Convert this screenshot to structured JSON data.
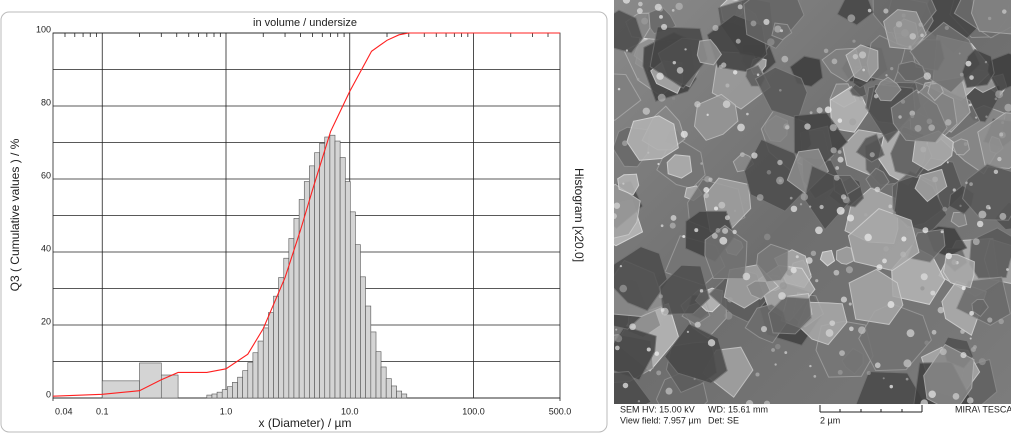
{
  "chart_data": {
    "type": "histogram",
    "title": "in volume / undersize",
    "xlabel": "x (Diameter) / µm",
    "ylabel": "Q3 ( Cumulative values ) / %",
    "y2label": "Histogram [x20.0]",
    "xscale": "log",
    "xlim": [
      0.04,
      500
    ],
    "xticks": [
      0.04,
      0.1,
      {
        "value": 1,
        "label": "1.0"
      },
      {
        "value": 10,
        "label": "10.0"
      },
      {
        "value": 100,
        "label": "100.0"
      },
      {
        "value": 500,
        "label": "500.0"
      }
    ],
    "ylim": [
      0,
      100
    ],
    "yticks": [
      0,
      20,
      40,
      60,
      80,
      100
    ],
    "ygrid": [
      0,
      10,
      20,
      30,
      40,
      50,
      60,
      70,
      80,
      90,
      100
    ],
    "grid": true,
    "color": "#d4d4d4",
    "edgecolor": "#555555",
    "bins": [
      0.1,
      0.2,
      0.3,
      0.41,
      0.7,
      0.77,
      0.847,
      0.932,
      1.025,
      1.127,
      1.24,
      1.364,
      1.5,
      1.65,
      1.815,
      2.0,
      2.2,
      2.42,
      2.66,
      2.93,
      3.22,
      3.54,
      3.9,
      4.29,
      4.72,
      5.19,
      5.71,
      6.28,
      6.91,
      7.6,
      8.36,
      9.2,
      10.1,
      11.1,
      12.2,
      13.4,
      14.8,
      16.3,
      17.9,
      19.7,
      21.7,
      23.9,
      26.3,
      28.9
    ],
    "values": [
      4.7,
      9.6,
      6.3,
      0,
      0.8,
      1.1,
      1.6,
      2.3,
      3.1,
      4.3,
      5.7,
      7.5,
      9.7,
      12.4,
      15.6,
      19.2,
      23.4,
      27.9,
      33,
      38.3,
      43.7,
      49.2,
      54.4,
      59.3,
      63.6,
      67.2,
      69.8,
      71.5,
      72,
      70.4,
      65.9,
      59.3,
      51,
      42,
      33.2,
      25.2,
      18.1,
      12.7,
      8.5,
      5.3,
      3.3,
      1.9,
      1.1
    ],
    "curve": {
      "color": "#ff2020",
      "x": [
        0.04,
        0.1,
        0.2,
        0.3,
        0.41,
        0.7,
        1.0,
        1.5,
        2,
        3,
        4,
        5,
        7,
        10,
        15,
        20,
        25,
        30,
        500
      ],
      "values": [
        0.5,
        1,
        2,
        5,
        7,
        7,
        8,
        12,
        19,
        33,
        46,
        57,
        73,
        84,
        95,
        98,
        99.5,
        100,
        100
      ]
    }
  },
  "sem_image": {
    "info": {
      "hv": "SEM HV: 15.00 kV",
      "view_field": "View field: 7.957 µm",
      "wd": "WD: 15.61 mm",
      "det": "Det: SE",
      "scale": "2 µm",
      "brand": "MIRA\\ TESCA"
    }
  }
}
